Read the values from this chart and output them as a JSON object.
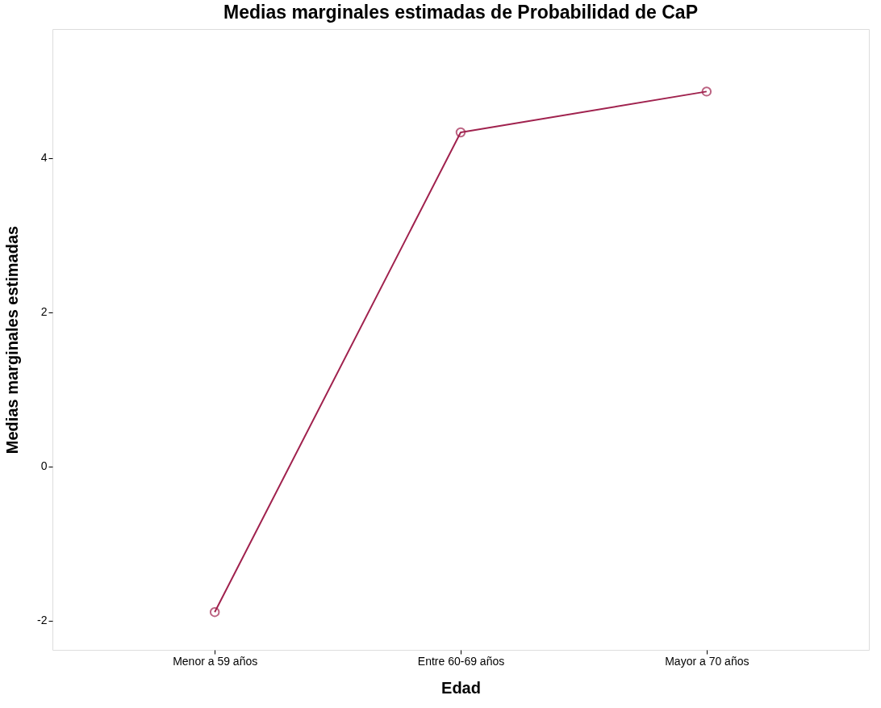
{
  "chart_data": {
    "type": "line",
    "title": "Medias marginales estimadas de Probabilidad de CaP",
    "xlabel": "Edad",
    "ylabel": "Medias marginales estimadas",
    "categories": [
      "Menor a 59 años",
      "Entre 60-69 años",
      "Mayor a 70 años"
    ],
    "series": [
      {
        "color": "#a0224e",
        "values": [
          -1.89,
          4.33,
          4.86
        ]
      }
    ],
    "ylim": [
      -2.38,
      5.67
    ],
    "yticks": [
      -2,
      0,
      2,
      4
    ],
    "grid": false,
    "marker": "circle",
    "line_style": "solid"
  }
}
